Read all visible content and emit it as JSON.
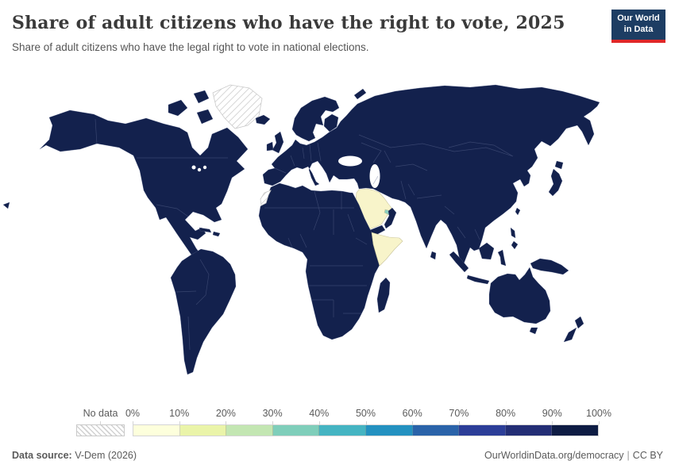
{
  "header": {
    "title": "Share of adult citizens who have the right to vote, 2025",
    "subtitle": "Share of adult citizens who have the legal right to vote in national elections.",
    "logo": {
      "line1": "Our World",
      "line2": "in Data"
    }
  },
  "legend": {
    "no_data_label": "No data",
    "tick_labels": [
      "0%",
      "10%",
      "20%",
      "30%",
      "40%",
      "50%",
      "60%",
      "70%",
      "80%",
      "90%",
      "100%"
    ]
  },
  "footer": {
    "source_label": "Data source:",
    "source_value": "V-Dem (2026)",
    "site": "OurWorldinData.org/democracy",
    "separator": "|",
    "license": "CC BY"
  },
  "colors": {
    "page_bg": "#ffffff",
    "title_text": "#3a3a3a",
    "subtitle_text": "#555555",
    "muted_text": "#5b5b5b",
    "logo_bg": "#1d3d63",
    "logo_accent": "#e02828",
    "logo_text": "#ffffff",
    "ocean": "#ffffff",
    "land_default": "#13214d",
    "land_border": "#5b678f",
    "land_low": "#f8f4ca",
    "land_mid": "#8dd0bf",
    "light_region_border": "#c9c49b",
    "no_data_stroke": "#c9c9c9",
    "legend_border": "#d4d4d4"
  },
  "chart_data": {
    "type": "choropleth_map",
    "title": "Share of adult citizens who have the right to vote, 2025",
    "subtitle": "Share of adult citizens who have the legal right to vote in national elections.",
    "unit": "% of adult citizens with legal right to vote",
    "projection": "world",
    "legend_position": "bottom",
    "color_scale": {
      "no_data": {
        "label": "No data",
        "style": "diagonal-hatch"
      },
      "bins": [
        {
          "range": "0-10%",
          "color": "#fdffdc"
        },
        {
          "range": "10-20%",
          "color": "#eaf4a9"
        },
        {
          "range": "20-30%",
          "color": "#c3e6b2"
        },
        {
          "range": "30-40%",
          "color": "#7fceba"
        },
        {
          "range": "40-50%",
          "color": "#45b4c2"
        },
        {
          "range": "50-60%",
          "color": "#2391c0"
        },
        {
          "range": "60-70%",
          "color": "#2a63a9"
        },
        {
          "range": "70-80%",
          "color": "#2c3e98"
        },
        {
          "range": "80-90%",
          "color": "#232e75"
        },
        {
          "range": "90-100%",
          "color": "#0e1c44"
        }
      ]
    },
    "regions": [
      {
        "region": "Greenland",
        "value": "No data"
      },
      {
        "region": "Western Sahara",
        "value": "No data"
      },
      {
        "region": "Saudi Arabia",
        "value": "0-10%"
      },
      {
        "region": "Somalia",
        "value": "0-10%"
      },
      {
        "region": "United Arab Emirates",
        "value": "30-40%"
      },
      {
        "region": "All other mapped countries (Americas, Europe, Africa, Asia, Oceania)",
        "value": "90-100%"
      }
    ]
  }
}
